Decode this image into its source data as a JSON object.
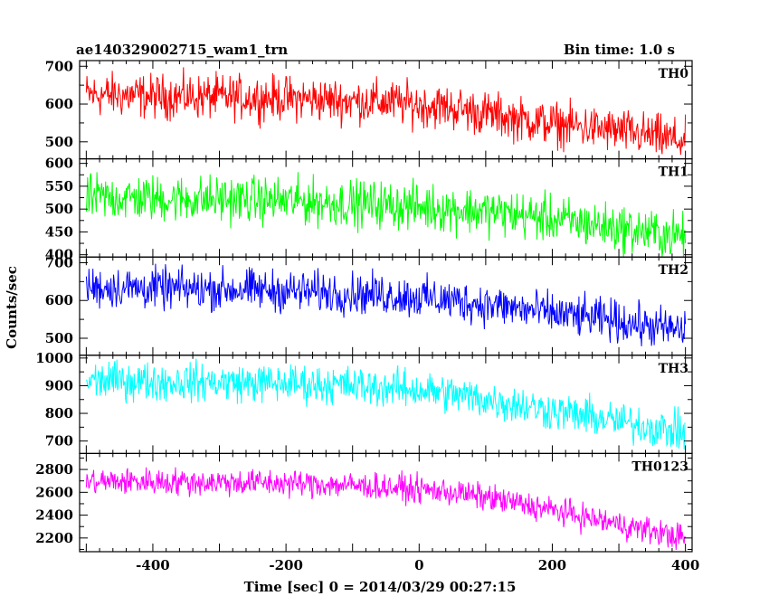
{
  "header": {
    "title": "ae140329002715_wam1_trn",
    "bin_time": "Bin time: 1.0 s"
  },
  "chart_data": [
    {
      "type": "line",
      "name": "TH0",
      "color": "#ff0000",
      "x": [
        -500,
        -450,
        -400,
        -350,
        -300,
        -250,
        -200,
        -150,
        -100,
        -50,
        0,
        50,
        100,
        150,
        200,
        250,
        300,
        350,
        400
      ],
      "values": [
        625,
        623,
        620,
        620,
        618,
        617,
        615,
        612,
        608,
        605,
        598,
        590,
        575,
        560,
        548,
        538,
        528,
        515,
        500
      ],
      "noise": 32,
      "xlim": [
        -500,
        400
      ],
      "ylim": [
        455,
        715
      ],
      "yticks": [
        500,
        600,
        700
      ],
      "label": "TH0"
    },
    {
      "type": "line",
      "name": "TH1",
      "color": "#00ff00",
      "x": [
        -500,
        -450,
        -400,
        -350,
        -300,
        -250,
        -200,
        -150,
        -100,
        -50,
        0,
        50,
        100,
        150,
        200,
        250,
        300,
        350,
        400
      ],
      "values": [
        525,
        525,
        523,
        522,
        522,
        520,
        518,
        515,
        512,
        510,
        505,
        500,
        495,
        488,
        478,
        468,
        458,
        448,
        440
      ],
      "noise": 28,
      "xlim": [
        -500,
        400
      ],
      "ylim": [
        395,
        610
      ],
      "yticks": [
        400,
        450,
        500,
        550,
        600
      ],
      "label": "TH1"
    },
    {
      "type": "line",
      "name": "TH2",
      "color": "#0000ff",
      "x": [
        -500,
        -450,
        -400,
        -350,
        -300,
        -250,
        -200,
        -150,
        -100,
        -50,
        0,
        50,
        100,
        150,
        200,
        250,
        300,
        350,
        400
      ],
      "values": [
        635,
        634,
        632,
        630,
        630,
        628,
        625,
        622,
        618,
        615,
        608,
        600,
        590,
        578,
        565,
        555,
        545,
        530,
        520
      ],
      "noise": 30,
      "xlim": [
        -500,
        400
      ],
      "ylim": [
        455,
        715
      ],
      "yticks": [
        500,
        600,
        700
      ],
      "label": "TH2"
    },
    {
      "type": "line",
      "name": "TH3",
      "color": "#00ffff",
      "x": [
        -500,
        -450,
        -400,
        -350,
        -300,
        -250,
        -200,
        -150,
        -100,
        -50,
        0,
        50,
        100,
        150,
        200,
        250,
        300,
        350,
        400
      ],
      "values": [
        918,
        918,
        915,
        914,
        912,
        910,
        908,
        905,
        900,
        893,
        885,
        870,
        850,
        830,
        810,
        790,
        770,
        750,
        730
      ],
      "noise": 38,
      "xlim": [
        -500,
        400
      ],
      "ylim": [
        655,
        1010
      ],
      "yticks": [
        700,
        800,
        900,
        1000
      ],
      "label": "TH3"
    },
    {
      "type": "line",
      "name": "TH0123",
      "color": "#ff00ff",
      "x": [
        -500,
        -450,
        -400,
        -350,
        -300,
        -250,
        -200,
        -150,
        -100,
        -50,
        0,
        50,
        100,
        150,
        200,
        250,
        300,
        350,
        400
      ],
      "values": [
        2690,
        2695,
        2695,
        2690,
        2690,
        2685,
        2680,
        2672,
        2660,
        2645,
        2625,
        2600,
        2555,
        2500,
        2445,
        2380,
        2320,
        2260,
        2200
      ],
      "noise": 65,
      "xlim": [
        -500,
        400
      ],
      "ylim": [
        2080,
        2940
      ],
      "yticks": [
        2200,
        2400,
        2600,
        2800
      ],
      "label": "TH0123"
    }
  ],
  "axes": {
    "ylabel": "Counts/sec",
    "xlabel": "Time [sec] 0 = 2014/03/29 00:27:15",
    "xticks": [
      -400,
      -200,
      0,
      200,
      400
    ],
    "xlim": [
      -510,
      410
    ]
  }
}
